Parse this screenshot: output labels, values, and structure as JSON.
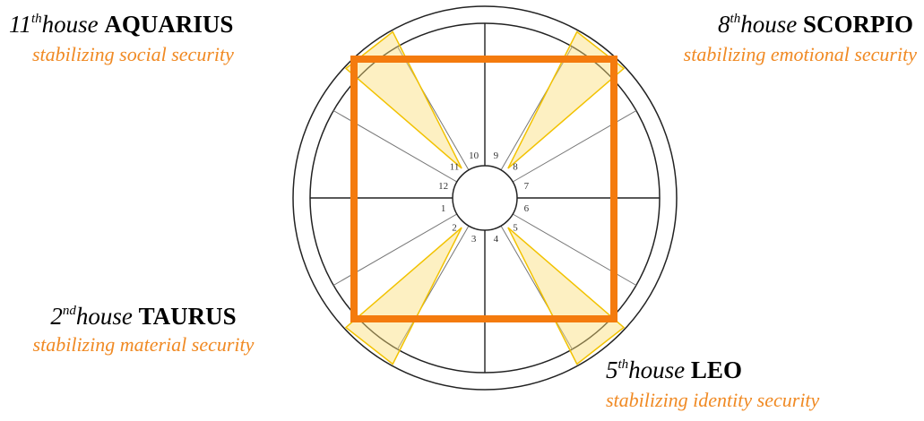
{
  "labels": [
    {
      "number": "11",
      "suffix": "th",
      "word": "house",
      "sign": "AQUARIUS",
      "subtitle": "stabilizing social security"
    },
    {
      "number": "8",
      "suffix": "th",
      "word": "house",
      "sign": "SCORPIO",
      "subtitle": "stabilizing emotional security"
    },
    {
      "number": "2",
      "suffix": "nd",
      "word": "house",
      "sign": "TAURUS",
      "subtitle": "stabilizing material security"
    },
    {
      "number": "5",
      "suffix": "th",
      "word": "house",
      "sign": "LEO",
      "subtitle": "stabilizing identity security"
    }
  ],
  "houses": [
    "1",
    "2",
    "3",
    "4",
    "5",
    "6",
    "7",
    "8",
    "9",
    "10",
    "11",
    "12"
  ]
}
